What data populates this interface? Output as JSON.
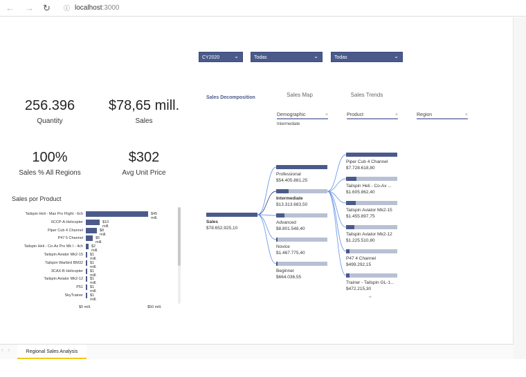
{
  "browser": {
    "url_host": "localhost",
    "url_port": ":3000"
  },
  "filters": [
    {
      "value": "CY2020"
    },
    {
      "value": "Todas"
    },
    {
      "value": "Todas"
    }
  ],
  "kpis": [
    {
      "value": "256.396",
      "label": "Quantity"
    },
    {
      "value": "$78,65 mill.",
      "label": "Sales"
    },
    {
      "value": "100%",
      "label": "Sales % All Regions"
    },
    {
      "value": "$302",
      "label": "Avg Unit Price"
    }
  ],
  "product_chart": {
    "title": "Sales por Product",
    "type": "bar",
    "categories": [
      "Tailspin Heli - Max Pro Flight - 6ch",
      "6CCP-A Helicopter",
      "Piper Cub 4 Channel",
      "P47 5 Channel",
      "Tailspin Heli - Co-Ax Pro Mk I - 4ch",
      "Tailspin Aviator Mk2-15",
      "Tailspin Warbird BM32",
      "3CAX-B Helicopter",
      "Tailspin Aviator Mk2-12",
      "P51",
      "SkyTrainer"
    ],
    "values": [
      45,
      10,
      8,
      5,
      2,
      1,
      1,
      1,
      1,
      1,
      1
    ],
    "value_labels": [
      "$45 mill.",
      "$10 mill.",
      "$8 mill.",
      "$5 mill.",
      "$2 mill.",
      "$1 mill.",
      "$1 mill.",
      "$1 mill.",
      "$1 mill.",
      "$1 mill.",
      "$1 mill."
    ],
    "x_ticks": [
      "$0 mill.",
      "$50 mill."
    ],
    "xlim": [
      0,
      50
    ]
  },
  "visual_tabs": {
    "active": "Sales Decomposition",
    "others": [
      "Sales Map",
      "Sales Trends"
    ]
  },
  "decomp": {
    "levels": [
      {
        "name": "Demographic",
        "selected": "Intermediate"
      },
      {
        "name": "Product"
      },
      {
        "name": "Region"
      }
    ],
    "clear_icon": "×",
    "root": {
      "label": "Sales",
      "value": "$78.652.925,10"
    },
    "level1": [
      {
        "label": "Professional",
        "value": "$54.405.881,25",
        "amount": 54405881.25
      },
      {
        "label": "Intermediate",
        "value": "$13.313.683,50",
        "amount": 13313683.5,
        "selected": true
      },
      {
        "label": "Advanced",
        "value": "$8.801.548,40",
        "amount": 8801548.4
      },
      {
        "label": "Novice",
        "value": "$1.467.775,40",
        "amount": 1467775.4
      },
      {
        "label": "Beginner",
        "value": "$664.036,55",
        "amount": 664036.55
      }
    ],
    "level2": [
      {
        "label": "Piper Cub 4 Channel",
        "value": "$7.728.618,80",
        "amount": 7728618.8
      },
      {
        "label": "Tailspin Heli - Co-Ax ...",
        "value": "$1.605.862,40",
        "amount": 1605862.4
      },
      {
        "label": "Tailspin Aviator Mk2-15",
        "value": "$1.455.897,75",
        "amount": 1455897.75
      },
      {
        "label": "Tailspin Aviator Mk2-12",
        "value": "$1.225.510,80",
        "amount": 1225510.8
      },
      {
        "label": "P47 4 Channel",
        "value": "$499.292,15",
        "amount": 499292.15
      },
      {
        "label": "Trainer - Tailspin GL-1...",
        "value": "$472.215,30",
        "amount": 472215.3
      }
    ]
  },
  "page_tabs": [
    {
      "label": "Regional Sales Analysis",
      "active": true
    }
  ],
  "colors": {
    "accent": "#4a5a8a",
    "bar_bg": "#b8c0d4",
    "link": "#6f9be8",
    "tab_underline": "#f2c811"
  }
}
